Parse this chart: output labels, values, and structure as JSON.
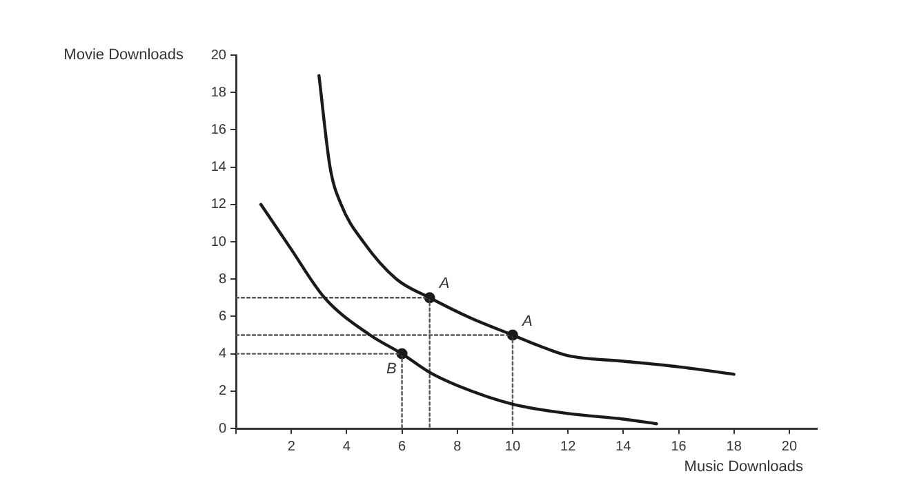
{
  "chart_data": {
    "type": "line",
    "xlabel": "Music Downloads",
    "ylabel": "Movie Downloads",
    "xlim": [
      0,
      21
    ],
    "ylim": [
      0,
      20
    ],
    "xticks": [
      {
        "value": 0,
        "label": null
      },
      2,
      4,
      6,
      8,
      10,
      12,
      14,
      16,
      18,
      20
    ],
    "yticks": [
      0,
      2,
      4,
      6,
      8,
      10,
      12,
      14,
      16,
      18,
      20
    ],
    "grid": false,
    "legend": false,
    "marker": "none",
    "series": [
      {
        "type": "line",
        "color": "#1a1a1a",
        "line_style": "solid",
        "x": [
          3,
          3.4,
          3.8,
          4.6,
          5.8,
          7,
          8.5,
          10,
          11,
          12,
          14,
          16,
          18
        ],
        "values": [
          18.9,
          14,
          12,
          10,
          8,
          7,
          5.9,
          5,
          4.4,
          3.9,
          3.6,
          3.3,
          2.9
        ]
      },
      {
        "type": "line",
        "color": "#1a1a1a",
        "line_style": "solid",
        "x": [
          0.9,
          1.95,
          3.2,
          4.85,
          6,
          7,
          8,
          10,
          12,
          14,
          15.2
        ],
        "values": [
          12,
          9.7,
          7,
          5,
          4,
          3,
          2.3,
          1.3,
          0.8,
          0.5,
          0.25
        ]
      },
      {
        "type": "line",
        "color": "#555555",
        "line_style": "dotted",
        "x": [
          0,
          7,
          7
        ],
        "values": [
          7,
          7,
          0
        ]
      },
      {
        "type": "line",
        "color": "#555555",
        "line_style": "dotted",
        "x": [
          0,
          10,
          10
        ],
        "values": [
          5,
          5,
          0
        ]
      },
      {
        "type": "line",
        "color": "#555555",
        "line_style": "dotted",
        "x": [
          0,
          6,
          6
        ],
        "values": [
          4,
          4,
          0
        ]
      },
      {
        "type": "scatter",
        "color": "#1a1a1a",
        "marker": "circle",
        "x": [
          7,
          10,
          6
        ],
        "values": [
          7,
          5,
          4
        ]
      }
    ],
    "annotations": [
      {
        "text": "A",
        "x": 7,
        "y": 7
      },
      {
        "text": "A",
        "x": 10,
        "y": 5
      },
      {
        "text": "B",
        "x": 6,
        "y": 4
      }
    ]
  }
}
